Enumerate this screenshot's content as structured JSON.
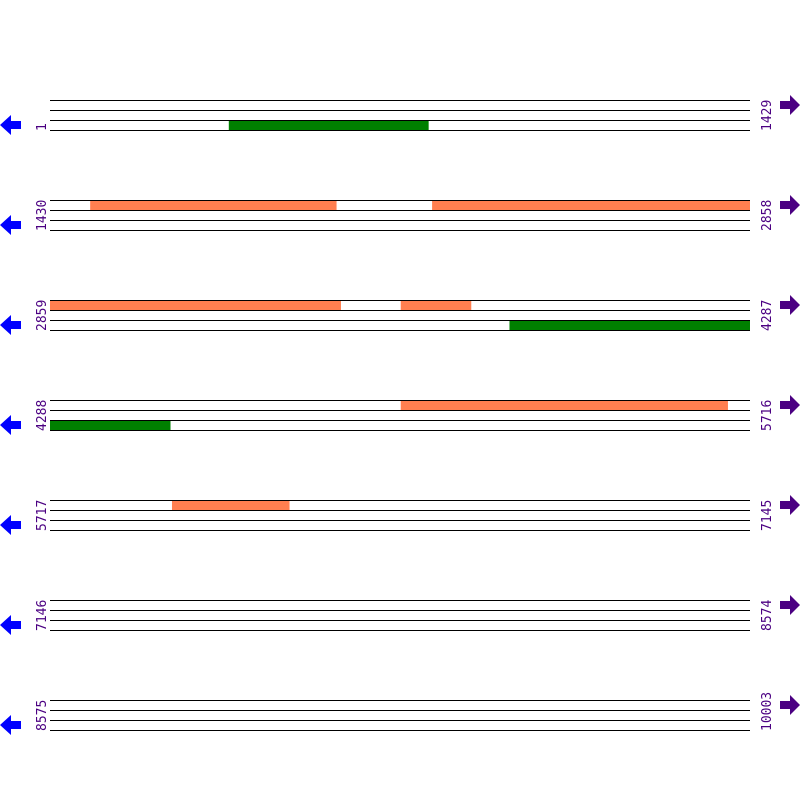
{
  "colors": {
    "line": "#000000",
    "forward_feature": "#ff7f50",
    "reverse_feature": "#008000",
    "left_arrow": "#0000ff",
    "right_arrow": "#4b0082",
    "label": "#4b0082"
  },
  "icons": {
    "left": "arrow-left-icon",
    "right": "arrow-right-icon"
  },
  "rows": [
    {
      "start": "1",
      "end": "1429",
      "features": [
        {
          "track": 3,
          "from": 366,
          "to": 773,
          "type": "reverse"
        }
      ]
    },
    {
      "start": "1430",
      "end": "2858",
      "features": [
        {
          "track": 1,
          "from": 1512,
          "to": 2014,
          "type": "forward"
        },
        {
          "track": 1,
          "from": 2210,
          "to": 2858,
          "type": "forward"
        }
      ]
    },
    {
      "start": "2859",
      "end": "4287",
      "features": [
        {
          "track": 1,
          "from": 2859,
          "to": 3452,
          "type": "forward"
        },
        {
          "track": 1,
          "from": 3575,
          "to": 3718,
          "type": "forward"
        },
        {
          "track": 3,
          "from": 3797,
          "to": 4287,
          "type": "reverse"
        }
      ]
    },
    {
      "start": "4288",
      "end": "5716",
      "features": [
        {
          "track": 1,
          "from": 5004,
          "to": 5671,
          "type": "forward"
        },
        {
          "track": 3,
          "from": 4288,
          "to": 4533,
          "type": "reverse"
        }
      ]
    },
    {
      "start": "5717",
      "end": "7145",
      "features": [
        {
          "track": 1,
          "from": 5966,
          "to": 6205,
          "type": "forward"
        }
      ]
    },
    {
      "start": "7146",
      "end": "8574",
      "features": []
    },
    {
      "start": "8575",
      "end": "10003",
      "features": []
    }
  ]
}
